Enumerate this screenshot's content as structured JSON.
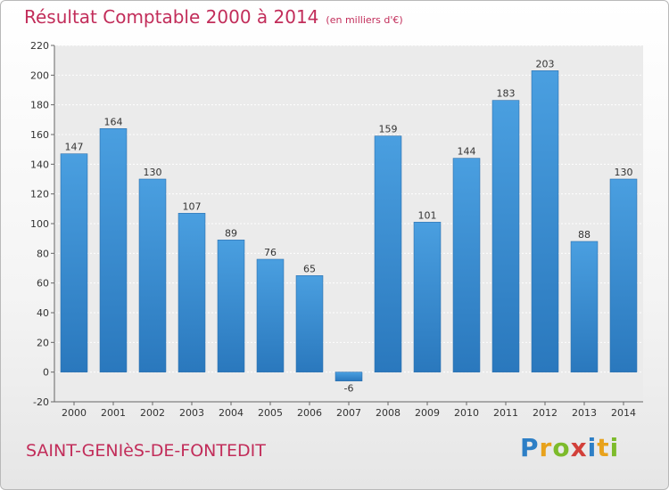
{
  "header": {
    "title": "Résultat Comptable 2000 à 2014",
    "subtitle": "(en milliers d'€)"
  },
  "footer": {
    "location": "SAINT-GENIèS-DE-FONTEDIT",
    "logo_letters": [
      "P",
      "r",
      "o",
      "x",
      "i",
      "t",
      "i"
    ],
    "logo_colors": [
      "#2d7fc6",
      "#e8a21c",
      "#7dbb2b",
      "#d2403a",
      "#2d7fc6",
      "#e8a21c",
      "#7dbb2b"
    ]
  },
  "chart_data": {
    "type": "bar",
    "categories": [
      "2000",
      "2001",
      "2002",
      "2003",
      "2004",
      "2005",
      "2006",
      "2007",
      "2008",
      "2009",
      "2010",
      "2011",
      "2012",
      "2013",
      "2014"
    ],
    "values": [
      147,
      164,
      130,
      107,
      89,
      76,
      65,
      -6,
      159,
      101,
      144,
      183,
      203,
      88,
      130
    ],
    "title": "Résultat Comptable 2000 à 2014",
    "ylim": [
      -20,
      220
    ],
    "yticks": [
      -20,
      0,
      20,
      40,
      60,
      80,
      100,
      120,
      140,
      160,
      180,
      200,
      220
    ],
    "grid": true,
    "bar_color": "#4a9fe0",
    "bar_color_dark": "#2a78bd"
  }
}
